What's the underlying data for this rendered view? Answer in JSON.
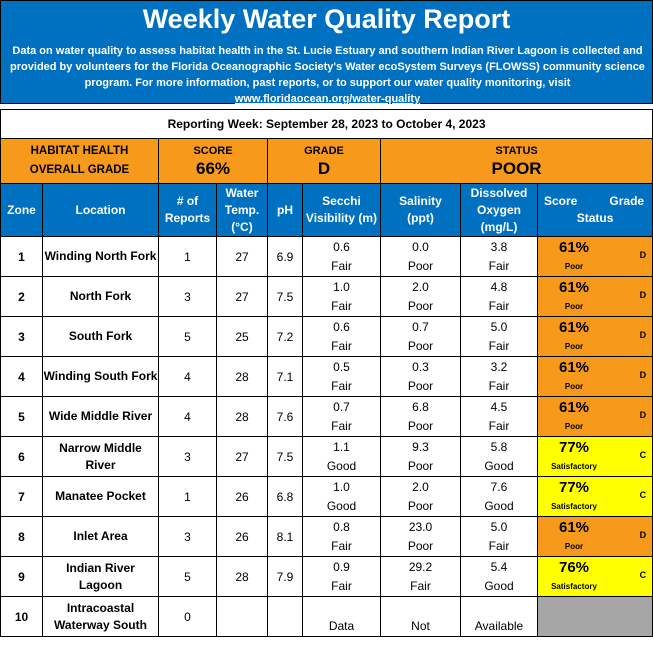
{
  "header": {
    "title": "Weekly Water Quality Report",
    "description": "Data on water quality to assess habitat health in the St. Lucie Estuary and southern Indian River Lagoon is collected and provided by volunteers for the Florida Oceanographic Society's Water ecoSystem Surveys (FLOWSS) community science program.  For more information, past reports, or to support our water quality monitoring, visit ",
    "link": "www.floridaocean.org/water-quality"
  },
  "reporting_week": "Reporting Week: September 28, 2023 to October 4, 2023",
  "habitat": {
    "label_line1": "HABITAT HEALTH",
    "label_line2": "OVERALL GRADE",
    "score_label": "SCORE",
    "score_value": "66%",
    "grade_label": "GRADE",
    "grade_value": "D",
    "status_label": "STATUS",
    "status_value": "POOR"
  },
  "columns": {
    "zone": "Zone",
    "location": "Location",
    "reports_1": "# of",
    "reports_2": "Reports",
    "temp_1": "Water",
    "temp_2": "Temp.",
    "temp_3": "(°C)",
    "ph": "pH",
    "secchi_1": "Secchi",
    "secchi_2": "Visibility (m)",
    "salinity_1": "Salinity",
    "salinity_2": "(ppt)",
    "do_1": "Dissolved",
    "do_2": "Oxygen",
    "do_3": "(mg/L)",
    "score": "Score",
    "grade": "Grade",
    "status": "Status"
  },
  "rows": [
    {
      "zone": "1",
      "location": "Winding North Fork",
      "reports": "1",
      "temp": "27",
      "ph": "6.9",
      "secchi": "0.6",
      "secchi_q": "Fair",
      "salinity": "0.0",
      "salinity_q": "Poor",
      "do": "3.8",
      "do_q": "Fair",
      "score": "61%",
      "grade": "D",
      "status": "Poor"
    },
    {
      "zone": "2",
      "location": "North Fork",
      "reports": "3",
      "temp": "27",
      "ph": "7.5",
      "secchi": "1.0",
      "secchi_q": "Fair",
      "salinity": "2.0",
      "salinity_q": "Poor",
      "do": "4.8",
      "do_q": "Fair",
      "score": "61%",
      "grade": "D",
      "status": "Poor"
    },
    {
      "zone": "3",
      "location": "South Fork",
      "reports": "5",
      "temp": "25",
      "ph": "7.2",
      "secchi": "0.6",
      "secchi_q": "Fair",
      "salinity": "0.7",
      "salinity_q": "Poor",
      "do": "5.0",
      "do_q": "Fair",
      "score": "61%",
      "grade": "D",
      "status": "Poor"
    },
    {
      "zone": "4",
      "location": "Winding South Fork",
      "reports": "4",
      "temp": "28",
      "ph": "7.1",
      "secchi": "0.5",
      "secchi_q": "Fair",
      "salinity": "0.3",
      "salinity_q": "Poor",
      "do": "3.2",
      "do_q": "Fair",
      "score": "61%",
      "grade": "D",
      "status": "Poor"
    },
    {
      "zone": "5",
      "location": "Wide Middle River",
      "reports": "4",
      "temp": "28",
      "ph": "7.6",
      "secchi": "0.7",
      "secchi_q": "Fair",
      "salinity": "6.8",
      "salinity_q": "Poor",
      "do": "4.5",
      "do_q": "Fair",
      "score": "61%",
      "grade": "D",
      "status": "Poor"
    },
    {
      "zone": "6",
      "location": "Narrow Middle River",
      "reports": "3",
      "temp": "27",
      "ph": "7.5",
      "secchi": "1.1",
      "secchi_q": "Good",
      "salinity": "9.3",
      "salinity_q": "Poor",
      "do": "5.8",
      "do_q": "Good",
      "score": "77%",
      "grade": "C",
      "status": "Satisfactory"
    },
    {
      "zone": "7",
      "location": "Manatee Pocket",
      "reports": "1",
      "temp": "26",
      "ph": "6.8",
      "secchi": "1.0",
      "secchi_q": "Good",
      "salinity": "2.0",
      "salinity_q": "Poor",
      "do": "7.6",
      "do_q": "Good",
      "score": "77%",
      "grade": "C",
      "status": "Satisfactory"
    },
    {
      "zone": "8",
      "location": "Inlet Area",
      "reports": "3",
      "temp": "26",
      "ph": "8.1",
      "secchi": "0.8",
      "secchi_q": "Fair",
      "salinity": "23.0",
      "salinity_q": "Poor",
      "do": "5.0",
      "do_q": "Fair",
      "score": "61%",
      "grade": "D",
      "status": "Poor"
    },
    {
      "zone": "9",
      "location": "Indian River Lagoon",
      "reports": "5",
      "temp": "28",
      "ph": "7.9",
      "secchi": "0.9",
      "secchi_q": "Fair",
      "salinity": "29.2",
      "salinity_q": "Fair",
      "do": "5.4",
      "do_q": "Good",
      "score": "76%",
      "grade": "C",
      "status": "Satisfactory"
    }
  ],
  "row10": {
    "zone": "10",
    "location": "Intracoastal Waterway South",
    "reports": "0",
    "secchi_q": "Data",
    "salinity_q": "Not",
    "do_q": "Available"
  },
  "colors": {
    "header_blue": "#0070c0",
    "orange_poor": "#f79a1c",
    "yellow_satisfactory": "#ffff00",
    "gray_na": "#a6a6a6"
  }
}
